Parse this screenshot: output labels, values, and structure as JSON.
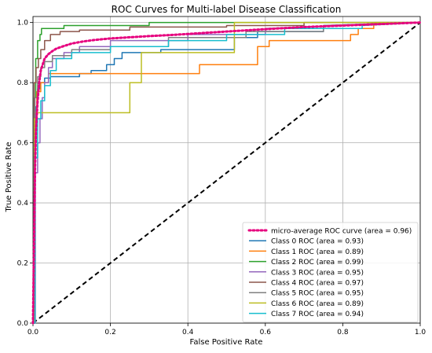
{
  "chart_data": {
    "type": "line",
    "title": "ROC Curves for Multi-label Disease Classification",
    "xlabel": "False Positive Rate",
    "ylabel": "True Positive Rate",
    "xlim": [
      0.0,
      1.0
    ],
    "ylim": [
      0.0,
      1.02
    ],
    "xticks": [
      "0.0",
      "0.2",
      "0.4",
      "0.6",
      "0.8",
      "1.0"
    ],
    "yticks": [
      "0.0",
      "0.2",
      "0.4",
      "0.6",
      "0.8",
      "1.0"
    ],
    "grid": true,
    "legend_position": "lower-right",
    "chance_line": {
      "x": [
        0,
        1
      ],
      "y": [
        0,
        1
      ],
      "color": "#000000",
      "style": "dashed"
    },
    "series": [
      {
        "name": "micro-average ROC curve (area = 0.96)",
        "color": "#e6007e",
        "style": "dotted",
        "x": [
          0,
          0.002,
          0.005,
          0.008,
          0.012,
          0.016,
          0.02,
          0.025,
          0.03,
          0.04,
          0.05,
          0.06,
          0.08,
          0.1,
          0.13,
          0.16,
          0.2,
          0.25,
          0.3,
          0.35,
          0.4,
          0.45,
          0.5,
          0.55,
          0.6,
          0.7,
          0.8,
          0.9,
          1.0
        ],
        "y": [
          0,
          0.2,
          0.5,
          0.65,
          0.74,
          0.8,
          0.84,
          0.86,
          0.88,
          0.895,
          0.905,
          0.913,
          0.922,
          0.93,
          0.937,
          0.942,
          0.947,
          0.951,
          0.955,
          0.958,
          0.962,
          0.966,
          0.97,
          0.974,
          0.978,
          0.985,
          0.99,
          0.995,
          1.0
        ]
      },
      {
        "name": "Class 0 ROC (area = 0.93)",
        "color": "#1f77b4",
        "x": [
          0,
          0.004,
          0.004,
          0.008,
          0.008,
          0.012,
          0.012,
          0.018,
          0.018,
          0.03,
          0.03,
          0.045,
          0.045,
          0.12,
          0.12,
          0.15,
          0.15,
          0.19,
          0.19,
          0.21,
          0.21,
          0.23,
          0.23,
          0.33,
          0.33,
          0.52,
          0.52,
          0.58,
          0.58,
          0.75,
          0.75,
          1.0
        ],
        "y": [
          0,
          0,
          0.6,
          0.6,
          0.72,
          0.72,
          0.78,
          0.78,
          0.8,
          0.8,
          0.815,
          0.815,
          0.82,
          0.82,
          0.83,
          0.83,
          0.84,
          0.84,
          0.86,
          0.86,
          0.88,
          0.88,
          0.9,
          0.9,
          0.91,
          0.91,
          0.95,
          0.95,
          0.97,
          0.97,
          0.99,
          1.0
        ]
      },
      {
        "name": "Class 1 ROC (area = 0.89)",
        "color": "#ff7f0e",
        "x": [
          0,
          0.004,
          0.004,
          0.01,
          0.01,
          0.02,
          0.02,
          0.04,
          0.04,
          0.43,
          0.43,
          0.58,
          0.58,
          0.61,
          0.61,
          0.82,
          0.82,
          0.84,
          0.84,
          0.88,
          0.88,
          1.0
        ],
        "y": [
          0,
          0,
          0.7,
          0.7,
          0.77,
          0.77,
          0.8,
          0.8,
          0.83,
          0.83,
          0.86,
          0.86,
          0.92,
          0.92,
          0.94,
          0.94,
          0.96,
          0.96,
          0.98,
          0.98,
          1.0,
          1.0
        ]
      },
      {
        "name": "Class 2 ROC (area = 0.99)",
        "color": "#2ca02c",
        "x": [
          0,
          0.003,
          0.003,
          0.007,
          0.007,
          0.012,
          0.012,
          0.018,
          0.018,
          0.022,
          0.022,
          0.08,
          0.08,
          0.3,
          0.3,
          0.52,
          0.52,
          0.8,
          0.8,
          1.0
        ],
        "y": [
          0,
          0,
          0.75,
          0.75,
          0.88,
          0.88,
          0.94,
          0.94,
          0.96,
          0.96,
          0.98,
          0.98,
          0.99,
          0.99,
          1.0,
          1.0,
          1.0,
          1.0,
          1.0,
          1.0
        ]
      },
      {
        "name": "Class 3 ROC (area = 0.95)",
        "color": "#9467bd",
        "x": [
          0,
          0.006,
          0.006,
          0.012,
          0.012,
          0.018,
          0.018,
          0.024,
          0.024,
          0.03,
          0.03,
          0.04,
          0.04,
          0.05,
          0.05,
          0.08,
          0.08,
          0.12,
          0.12,
          0.2,
          0.2,
          0.4,
          0.4,
          0.6,
          0.6,
          1.0
        ],
        "y": [
          0,
          0,
          0.5,
          0.5,
          0.6,
          0.6,
          0.68,
          0.68,
          0.75,
          0.75,
          0.8,
          0.8,
          0.85,
          0.85,
          0.88,
          0.88,
          0.9,
          0.9,
          0.92,
          0.92,
          0.94,
          0.94,
          0.96,
          0.96,
          0.98,
          1.0
        ]
      },
      {
        "name": "Class 4 ROC (area = 0.97)",
        "color": "#8c564b",
        "x": [
          0,
          0.003,
          0.003,
          0.008,
          0.008,
          0.014,
          0.014,
          0.02,
          0.02,
          0.03,
          0.03,
          0.045,
          0.045,
          0.07,
          0.07,
          0.12,
          0.12,
          0.25,
          0.25,
          0.5,
          0.5,
          0.7,
          0.7,
          1.0
        ],
        "y": [
          0,
          0,
          0.8,
          0.8,
          0.85,
          0.85,
          0.88,
          0.88,
          0.91,
          0.91,
          0.94,
          0.94,
          0.96,
          0.96,
          0.97,
          0.97,
          0.975,
          0.975,
          0.985,
          0.985,
          0.99,
          0.99,
          1.0,
          1.0
        ]
      },
      {
        "name": "Class 5 ROC (area = 0.95)",
        "color": "#7f7f7f",
        "x": [
          0,
          0.005,
          0.005,
          0.012,
          0.012,
          0.02,
          0.02,
          0.03,
          0.03,
          0.05,
          0.05,
          0.1,
          0.1,
          0.2,
          0.2,
          0.35,
          0.35,
          0.55,
          0.55,
          0.75,
          0.75,
          1.0
        ],
        "y": [
          0,
          0,
          0.75,
          0.75,
          0.82,
          0.82,
          0.85,
          0.85,
          0.87,
          0.87,
          0.89,
          0.89,
          0.91,
          0.91,
          0.92,
          0.92,
          0.95,
          0.95,
          0.97,
          0.97,
          0.99,
          1.0
        ]
      },
      {
        "name": "Class 6 ROC (area = 0.89)",
        "color": "#bcbd22",
        "x": [
          0,
          0.004,
          0.004,
          0.01,
          0.01,
          0.25,
          0.25,
          0.28,
          0.28,
          0.52,
          0.52,
          0.62,
          0.62,
          1.0
        ],
        "y": [
          0,
          0,
          0.68,
          0.68,
          0.7,
          0.7,
          0.8,
          0.8,
          0.9,
          0.9,
          1.0,
          1.0,
          1.0,
          1.0
        ]
      },
      {
        "name": "Class 7 ROC (area = 0.94)",
        "color": "#17becf",
        "x": [
          0,
          0.005,
          0.005,
          0.012,
          0.012,
          0.02,
          0.02,
          0.03,
          0.03,
          0.045,
          0.045,
          0.06,
          0.06,
          0.1,
          0.1,
          0.2,
          0.2,
          0.35,
          0.35,
          0.5,
          0.5,
          0.65,
          0.65,
          0.85,
          0.85,
          1.0
        ],
        "y": [
          0,
          0,
          0.55,
          0.55,
          0.68,
          0.68,
          0.74,
          0.74,
          0.79,
          0.79,
          0.84,
          0.84,
          0.88,
          0.88,
          0.9,
          0.9,
          0.92,
          0.92,
          0.94,
          0.94,
          0.96,
          0.96,
          0.98,
          0.98,
          0.99,
          1.0
        ]
      }
    ]
  }
}
